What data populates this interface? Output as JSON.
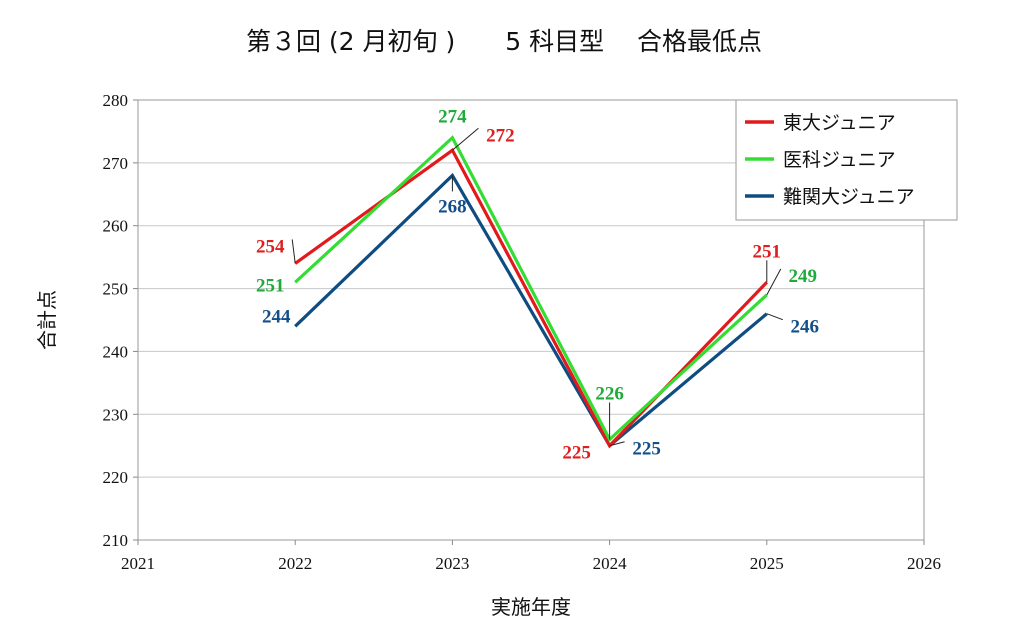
{
  "chart_data": {
    "type": "line",
    "title": "第３回 (2 月初旬 )　　5 科目型　 合格最低点",
    "xlabel": "実施年度",
    "ylabel": "合計点",
    "xlim": [
      2021,
      2026
    ],
    "ylim": [
      210,
      280
    ],
    "x_ticks": [
      "2021",
      "2022",
      "2023",
      "2024",
      "2025",
      "2026"
    ],
    "y_ticks": [
      "210",
      "220",
      "230",
      "240",
      "250",
      "260",
      "270",
      "280"
    ],
    "grid": "horizontal",
    "legend": "top-right",
    "x": [
      2022,
      2023,
      2024,
      2025
    ],
    "series": [
      {
        "name": "東大ジュニア",
        "color": "#e31a1c",
        "values": [
          254,
          272,
          225,
          251
        ],
        "labels": [
          "254",
          "272",
          "225",
          "251"
        ]
      },
      {
        "name": "医科ジュニア",
        "color": "#33dd33",
        "values": [
          251,
          274,
          226,
          249
        ],
        "labels": [
          "251",
          "274",
          "226",
          "249"
        ]
      },
      {
        "name": "難関大ジュニア",
        "color": "#0f4c81",
        "values": [
          244,
          268,
          225,
          246
        ],
        "labels": [
          "244",
          "268",
          "225",
          "246"
        ]
      }
    ],
    "label_colors": {
      "東大ジュニア": "#dd1f1f",
      "医科ジュニア": "#1faa3a",
      "難関大ジュニア": "#134f8a"
    }
  }
}
